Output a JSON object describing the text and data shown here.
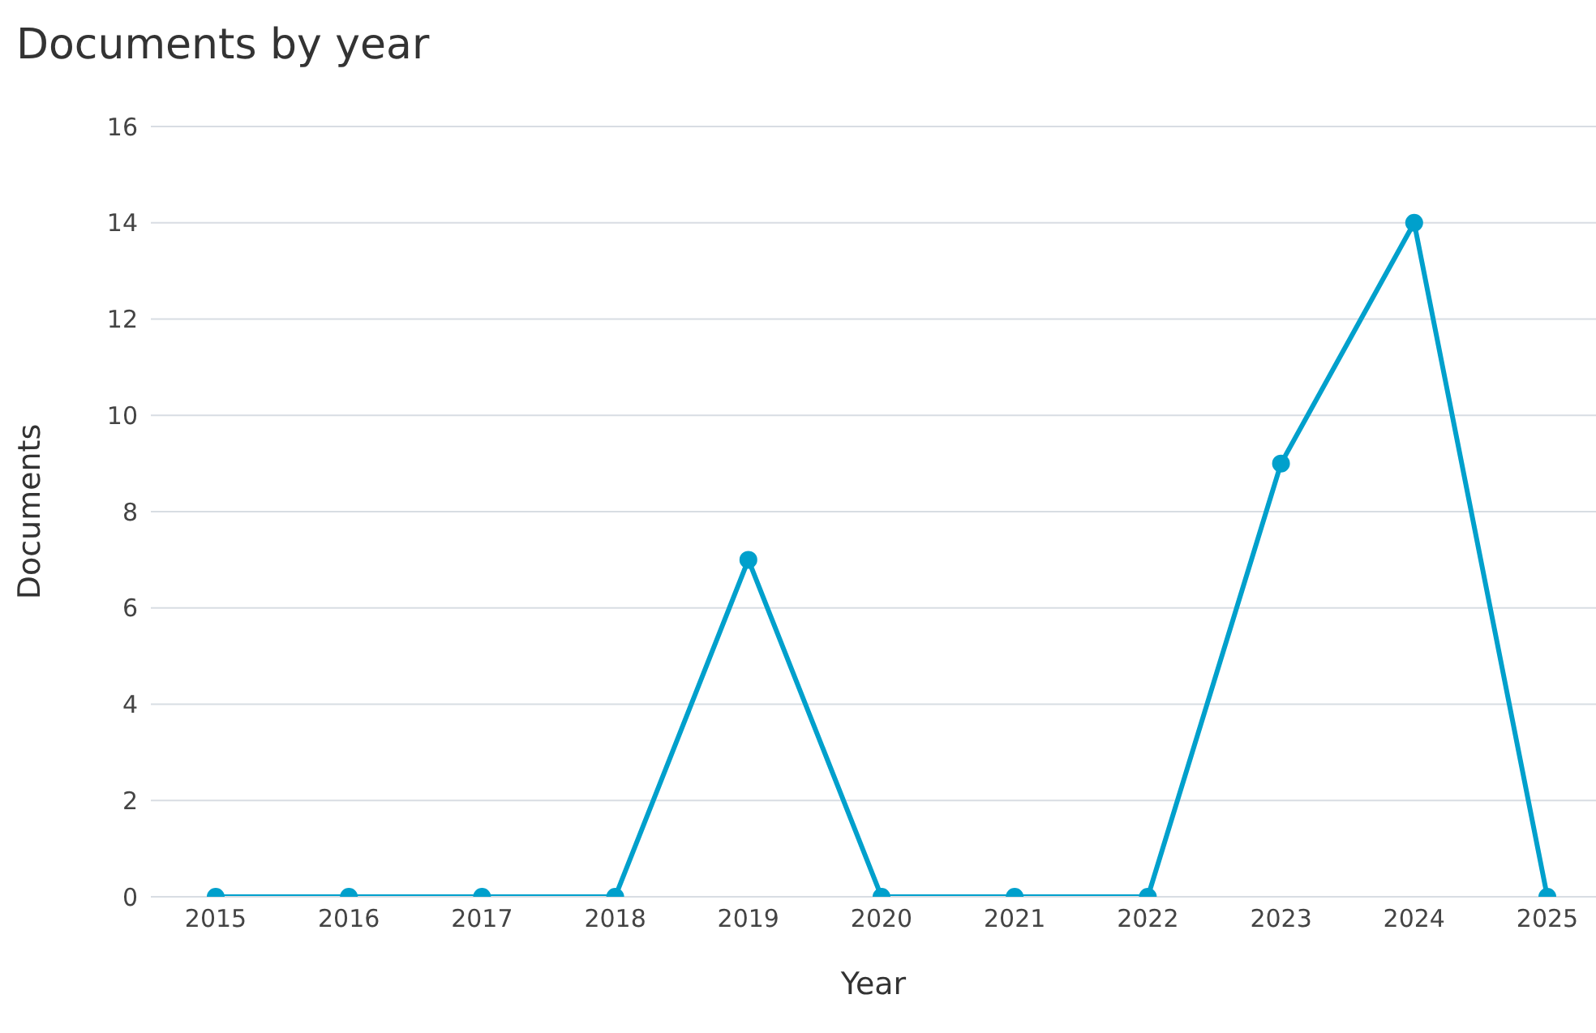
{
  "chart_data": {
    "type": "line",
    "title": "Documents by year",
    "xlabel": "Year",
    "ylabel": "Documents",
    "categories": [
      "2015",
      "2016",
      "2017",
      "2018",
      "2019",
      "2020",
      "2021",
      "2022",
      "2023",
      "2024",
      "2025"
    ],
    "series": [
      {
        "color": "#00a0cc",
        "values": [
          0,
          0,
          0,
          0,
          7,
          0,
          0,
          0,
          9,
          14,
          0
        ]
      }
    ],
    "ylim": [
      0,
      16
    ],
    "yticks": [
      0,
      2,
      4,
      6,
      8,
      10,
      12,
      14,
      16
    ],
    "grid": "y",
    "legend": false,
    "marker": "circle",
    "line_style": "solid"
  }
}
